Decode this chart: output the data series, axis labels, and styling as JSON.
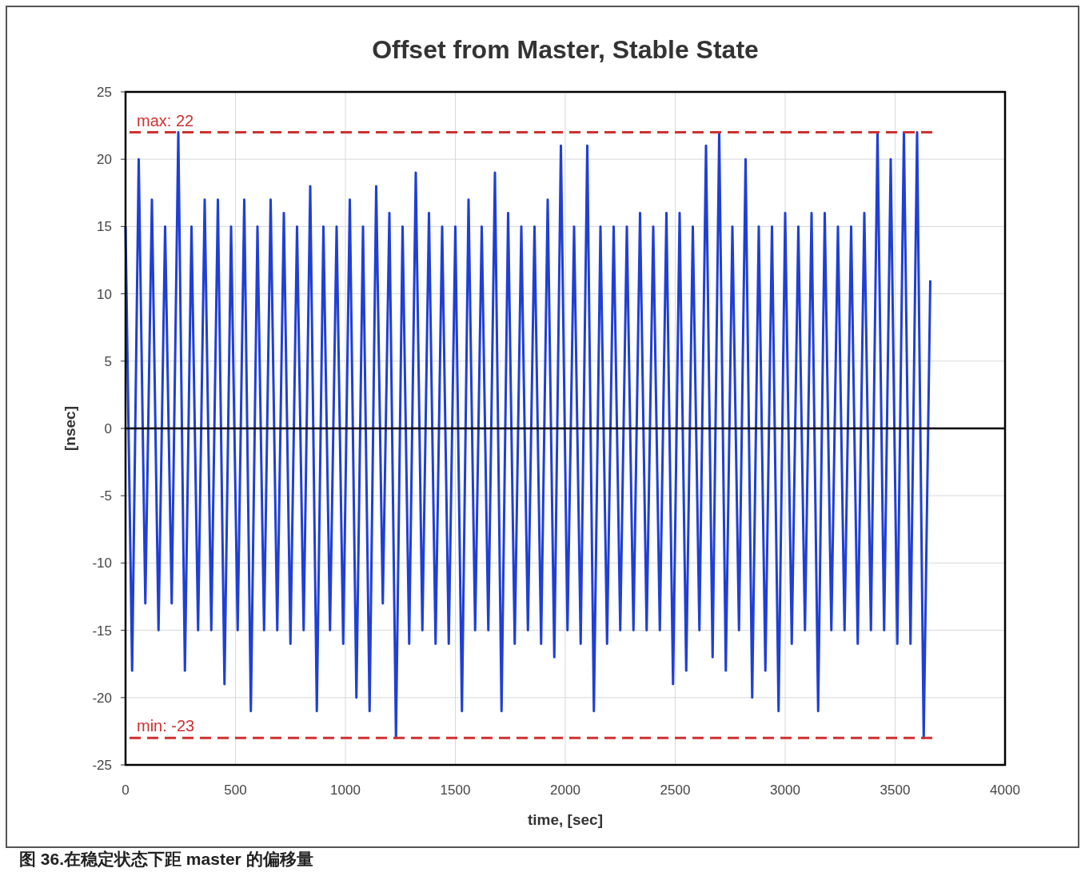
{
  "chart_data": {
    "type": "line",
    "title": "Offset from Master, Stable State",
    "xlabel": "time, [sec]",
    "ylabel": "[nsec]",
    "x": [
      0,
      30,
      60,
      90,
      120,
      150,
      180,
      210,
      240,
      270,
      300,
      330,
      360,
      390,
      420,
      450,
      480,
      510,
      540,
      570,
      600,
      630,
      660,
      690,
      720,
      750,
      780,
      810,
      840,
      870,
      900,
      930,
      960,
      990,
      1020,
      1050,
      1080,
      1110,
      1140,
      1170,
      1200,
      1230,
      1260,
      1290,
      1320,
      1350,
      1380,
      1410,
      1440,
      1470,
      1500,
      1530,
      1560,
      1590,
      1620,
      1650,
      1680,
      1710,
      1740,
      1770,
      1800,
      1830,
      1860,
      1890,
      1920,
      1950,
      1980,
      2010,
      2040,
      2070,
      2100,
      2130,
      2160,
      2190,
      2220,
      2250,
      2280,
      2310,
      2340,
      2370,
      2400,
      2430,
      2460,
      2490,
      2520,
      2550,
      2580,
      2610,
      2640,
      2670,
      2700,
      2730,
      2760,
      2790,
      2820,
      2850,
      2880,
      2910,
      2940,
      2970,
      3000,
      3030,
      3060,
      3090,
      3120,
      3150,
      3180,
      3210,
      3240,
      3270,
      3300,
      3330,
      3360,
      3390,
      3420,
      3450,
      3480,
      3510,
      3540,
      3570,
      3600,
      3630,
      3660
    ],
    "series": [
      {
        "color": "#1f3fd6",
        "values": [
          15,
          -18,
          20,
          -13,
          17,
          -15,
          15,
          -13,
          22,
          -18,
          15,
          -15,
          17,
          -15,
          17,
          -19,
          15,
          -15,
          17,
          -21,
          15,
          -15,
          17,
          -15,
          16,
          -16,
          15,
          -15,
          18,
          -21,
          15,
          -15,
          15,
          -16,
          17,
          -20,
          15,
          -21,
          18,
          -13,
          16,
          -23,
          15,
          -16,
          19,
          -15,
          16,
          -16,
          15,
          -16,
          15,
          -21,
          17,
          -15,
          15,
          -15,
          19,
          -21,
          16,
          -16,
          15,
          -15,
          15,
          -16,
          17,
          -17,
          21,
          -15,
          15,
          -16,
          21,
          -21,
          15,
          -16,
          15,
          -15,
          15,
          -15,
          16,
          -15,
          15,
          -15,
          16,
          -19,
          16,
          -18,
          15,
          -15,
          21,
          -17,
          22,
          -18,
          15,
          -15,
          20,
          -20,
          15,
          -18,
          15,
          -21,
          16,
          -16,
          15,
          -15,
          16,
          -21,
          16,
          -15,
          15,
          -15,
          15,
          -16,
          16,
          -15,
          22,
          -15,
          20,
          -16,
          22,
          -16,
          22,
          -23,
          11
        ]
      }
    ],
    "xlim": [
      0,
      4000
    ],
    "xticks": [
      0,
      500,
      1000,
      1500,
      2000,
      2500,
      3000,
      3500,
      4000
    ],
    "ylim": [
      -25,
      25
    ],
    "yticks": [
      -25,
      -20,
      -15,
      -10,
      -5,
      0,
      5,
      10,
      15,
      20,
      25
    ],
    "grid": true,
    "ref_lines": [
      {
        "axis": "y",
        "value": 22,
        "label": "max: 22",
        "color": "#d03030",
        "line_style": "dashed"
      },
      {
        "axis": "y",
        "value": -23,
        "label": "min: -23",
        "color": "#d03030",
        "line_style": "dashed"
      }
    ],
    "annotations": [
      "图 36.在稳定状态下距 master 的偏移量"
    ]
  }
}
